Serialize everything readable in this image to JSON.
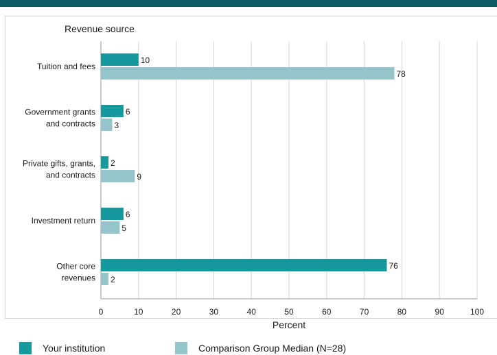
{
  "colors": {
    "accent_bar": "#0d5c63",
    "series_institution": "#16999c",
    "series_median": "#95c5ca",
    "grid": "#d6d6d6"
  },
  "chart_data": {
    "type": "bar",
    "orientation": "horizontal",
    "ylabel": "Revenue source",
    "xlabel": "Percent",
    "categories": [
      [
        "Tuition and fees"
      ],
      [
        "Government grants",
        "and contracts"
      ],
      [
        "Private gifts, grants,",
        "and contracts"
      ],
      [
        "Investment return"
      ],
      [
        "Other core",
        "revenues"
      ]
    ],
    "series": [
      {
        "name": "Your institution",
        "color": "#16999c",
        "values": [
          10,
          6,
          2,
          6,
          76
        ]
      },
      {
        "name": "Comparison Group Median (N=28)",
        "color": "#95c5ca",
        "values": [
          78,
          3,
          9,
          5,
          2
        ]
      }
    ],
    "xlim": [
      0,
      100
    ],
    "xticks": [
      "0",
      "10",
      "20",
      "30",
      "40",
      "50",
      "60",
      "70",
      "80",
      "90",
      "100"
    ],
    "grid": true,
    "legend_position": "bottom"
  },
  "legend": {
    "items": [
      {
        "label": "Your institution"
      },
      {
        "label": "Comparison Group Median (N=28)"
      }
    ]
  }
}
